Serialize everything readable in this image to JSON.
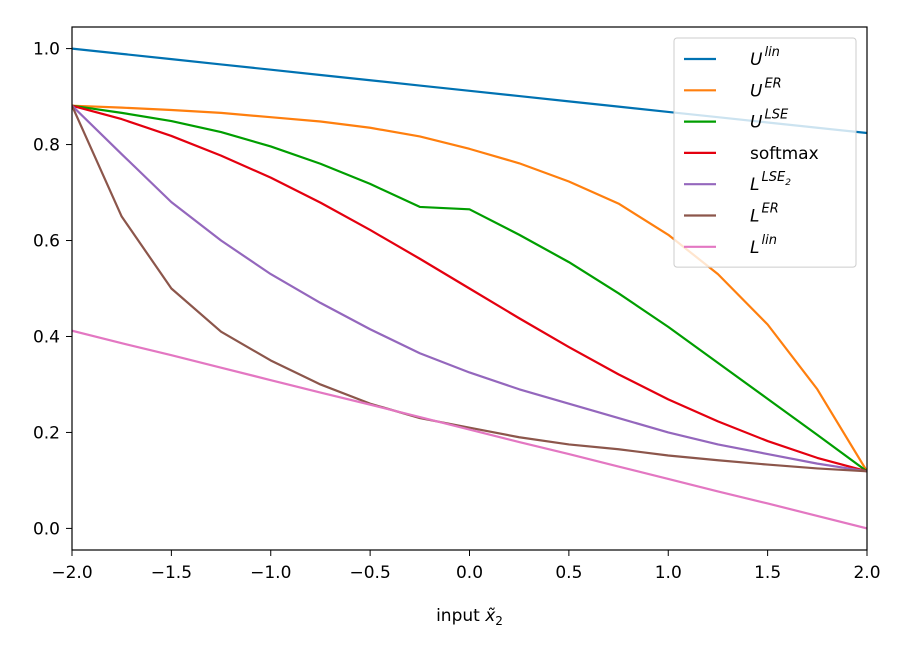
{
  "chart_data": {
    "type": "line",
    "xlabel": "input x̃₂",
    "xlabel_main": "input ",
    "xlabel_var": "x̃",
    "xlabel_sub": "2",
    "xlim": [
      -2.0,
      2.0
    ],
    "ylim": [
      -0.045,
      1.045
    ],
    "xticks": [
      -2.0,
      -1.5,
      -1.0,
      -0.5,
      0.0,
      0.5,
      1.0,
      1.5,
      2.0
    ],
    "xtick_labels": [
      "−2.0",
      "−1.5",
      "−1.0",
      "−0.5",
      "0.0",
      "0.5",
      "1.0",
      "1.5",
      "2.0"
    ],
    "yticks": [
      0.0,
      0.2,
      0.4,
      0.6,
      0.8,
      1.0
    ],
    "ytick_labels": [
      "0.0",
      "0.2",
      "0.4",
      "0.6",
      "0.8",
      "1.0"
    ],
    "grid": false,
    "legend_position": "top-right",
    "x": [
      -2.0,
      -1.75,
      -1.5,
      -1.25,
      -1.0,
      -0.75,
      -0.5,
      -0.25,
      0.0,
      0.25,
      0.5,
      0.75,
      1.0,
      1.25,
      1.5,
      1.75,
      2.0
    ],
    "series": [
      {
        "name": "U^lin",
        "label_base": "U",
        "label_sup": "lin",
        "label_sub": "",
        "color": "#0072b2",
        "values": [
          1.0,
          0.989,
          0.978,
          0.967,
          0.956,
          0.945,
          0.934,
          0.923,
          0.912,
          0.901,
          0.89,
          0.879,
          0.868,
          0.857,
          0.846,
          0.835,
          0.824
        ]
      },
      {
        "name": "U^ER",
        "label_base": "U",
        "label_sup": "ER",
        "label_sub": "",
        "color": "#ff7f0e",
        "values": [
          0.881,
          0.877,
          0.872,
          0.866,
          0.857,
          0.848,
          0.835,
          0.817,
          0.791,
          0.761,
          0.723,
          0.677,
          0.612,
          0.53,
          0.425,
          0.29,
          0.119
        ]
      },
      {
        "name": "U^LSE",
        "label_base": "U",
        "label_sup": "LSE",
        "label_sub": "",
        "color": "#009e00",
        "values": [
          0.881,
          0.866,
          0.849,
          0.826,
          0.796,
          0.76,
          0.718,
          0.67,
          0.665,
          0.612,
          0.555,
          0.49,
          0.42,
          0.345,
          0.27,
          0.195,
          0.119
        ]
      },
      {
        "name": "softmax",
        "label_base": "softmax",
        "label_sup": "",
        "label_sub": "",
        "color": "#e4000f",
        "values": [
          0.881,
          0.853,
          0.818,
          0.777,
          0.731,
          0.679,
          0.622,
          0.562,
          0.5,
          0.438,
          0.378,
          0.321,
          0.269,
          0.223,
          0.182,
          0.147,
          0.119
        ]
      },
      {
        "name": "L^LSE2",
        "label_base": "L",
        "label_sup": "LSE",
        "label_sub": "2",
        "color": "#9467bd",
        "values": [
          0.881,
          0.78,
          0.68,
          0.6,
          0.53,
          0.47,
          0.415,
          0.365,
          0.325,
          0.29,
          0.26,
          0.23,
          0.2,
          0.175,
          0.155,
          0.135,
          0.119
        ]
      },
      {
        "name": "L^ER",
        "label_base": "L",
        "label_sup": "ER",
        "label_sub": "",
        "color": "#8c564b",
        "values": [
          0.881,
          0.65,
          0.5,
          0.41,
          0.35,
          0.3,
          0.26,
          0.23,
          0.21,
          0.19,
          0.175,
          0.165,
          0.152,
          0.142,
          0.133,
          0.125,
          0.119
        ]
      },
      {
        "name": "L^lin",
        "label_base": "L",
        "label_sup": "lin",
        "label_sub": "",
        "color": "#e377c2",
        "values": [
          0.412,
          0.386,
          0.361,
          0.335,
          0.309,
          0.283,
          0.258,
          0.232,
          0.206,
          0.18,
          0.155,
          0.129,
          0.103,
          0.077,
          0.052,
          0.026,
          0.0
        ]
      }
    ]
  }
}
